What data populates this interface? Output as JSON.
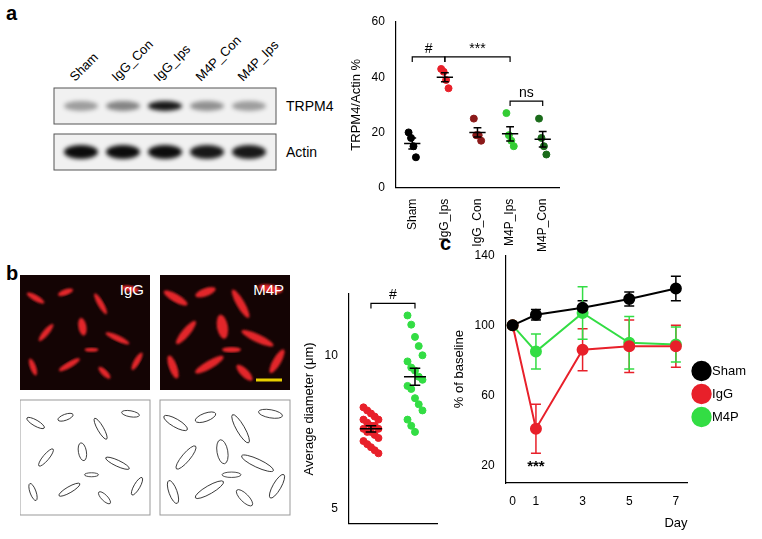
{
  "panel_labels": [
    "a",
    "b",
    "c"
  ],
  "blot": {
    "lanes": [
      "Sham",
      "IgG_Con",
      "IgG_Ips",
      "M4P_Con",
      "M4P_Ips"
    ],
    "rows": [
      {
        "name": "TRPM4",
        "intensity": [
          0.35,
          0.45,
          0.9,
          0.4,
          0.35
        ]
      },
      {
        "name": "Actin",
        "intensity": [
          0.95,
          0.95,
          0.95,
          0.9,
          0.9
        ]
      }
    ]
  },
  "micrographs": {
    "labels": [
      "IgG",
      "M4P"
    ]
  },
  "chart_data": [
    {
      "type": "scatter",
      "y_label": "TRPM4/Actin %",
      "categories": [
        "Sham",
        "IgG_Ips",
        "IgG_Con",
        "M4P_Ips",
        "M4P_Con"
      ],
      "colors": [
        "#000000",
        "#e8202a",
        "#8b1a1a",
        "#33cc33",
        "#1a6b1a"
      ],
      "values": [
        [
          20,
          18,
          15,
          11
        ],
        [
          43,
          42,
          39,
          36
        ],
        [
          25,
          19,
          19,
          17
        ],
        [
          27,
          19,
          17,
          15
        ],
        [
          25,
          18,
          15,
          12
        ]
      ],
      "means": [
        16,
        40,
        20,
        19.5,
        17.5
      ],
      "errors": [
        2,
        1.6,
        1.7,
        2.6,
        2.8
      ],
      "annotations": [
        {
          "text": "#",
          "between": [
            0,
            1
          ]
        },
        {
          "text": "***",
          "between": [
            1,
            3
          ]
        },
        {
          "text": "ns",
          "between": [
            3,
            4
          ]
        }
      ],
      "ylim": [
        0,
        60
      ],
      "yticks": [
        0,
        20,
        40,
        60
      ],
      "grid": false
    },
    {
      "type": "scatter",
      "y_label": "Average diameter (μm)",
      "colors": [
        "#e8202a",
        "#33dd44"
      ],
      "values": [
        [
          8.3,
          8.2,
          8.1,
          8.0,
          7.9,
          7.9,
          7.8,
          7.7,
          7.7,
          7.6,
          7.6,
          7.5,
          7.5,
          7.4,
          7.3,
          7.2,
          7.1,
          7.0,
          6.9,
          6.8
        ],
        [
          11.3,
          11.0,
          10.6,
          10.3,
          10.0,
          9.8,
          9.6,
          9.5,
          9.3,
          9.2,
          9.0,
          8.9,
          8.6,
          8.4,
          8.2,
          7.9,
          7.7,
          7.5
        ]
      ],
      "means": [
        7.6,
        9.3
      ],
      "errors": [
        0.1,
        0.28
      ],
      "annotations": [
        {
          "text": "#",
          "between": [
            0,
            1
          ]
        }
      ],
      "ylim": [
        4.5,
        12
      ],
      "yticks": [
        5,
        10
      ],
      "grid": false,
      "tick_labels": "y"
    },
    {
      "type": "line",
      "y_label": "% of baseline",
      "x_label": "Day",
      "x": [
        0,
        1,
        3,
        5,
        7
      ],
      "xlim": [
        -0.3,
        7.5
      ],
      "xticks": [
        0,
        1,
        3,
        5,
        7
      ],
      "ylim": [
        10,
        140
      ],
      "yticks": [
        20,
        60,
        100,
        140
      ],
      "grid": false,
      "legend": "right",
      "series": [
        {
          "name": "Sham",
          "color": "#000000",
          "marker": "circle",
          "values": [
            100,
            106,
            110,
            115,
            121
          ],
          "errors": [
            0,
            3,
            4,
            4,
            7
          ]
        },
        {
          "name": "IgG",
          "color": "#e8202a",
          "marker": "circle",
          "values": [
            100,
            41,
            86,
            88,
            88
          ],
          "errors": [
            0,
            14,
            12,
            15,
            12
          ]
        },
        {
          "name": "M4P",
          "color": "#33dd44",
          "marker": "circle",
          "values": [
            100,
            85,
            107,
            90,
            89
          ],
          "errors": [
            0,
            10,
            15,
            15,
            10
          ]
        }
      ],
      "annotations": [
        {
          "text": "***",
          "x": 1
        }
      ]
    }
  ]
}
